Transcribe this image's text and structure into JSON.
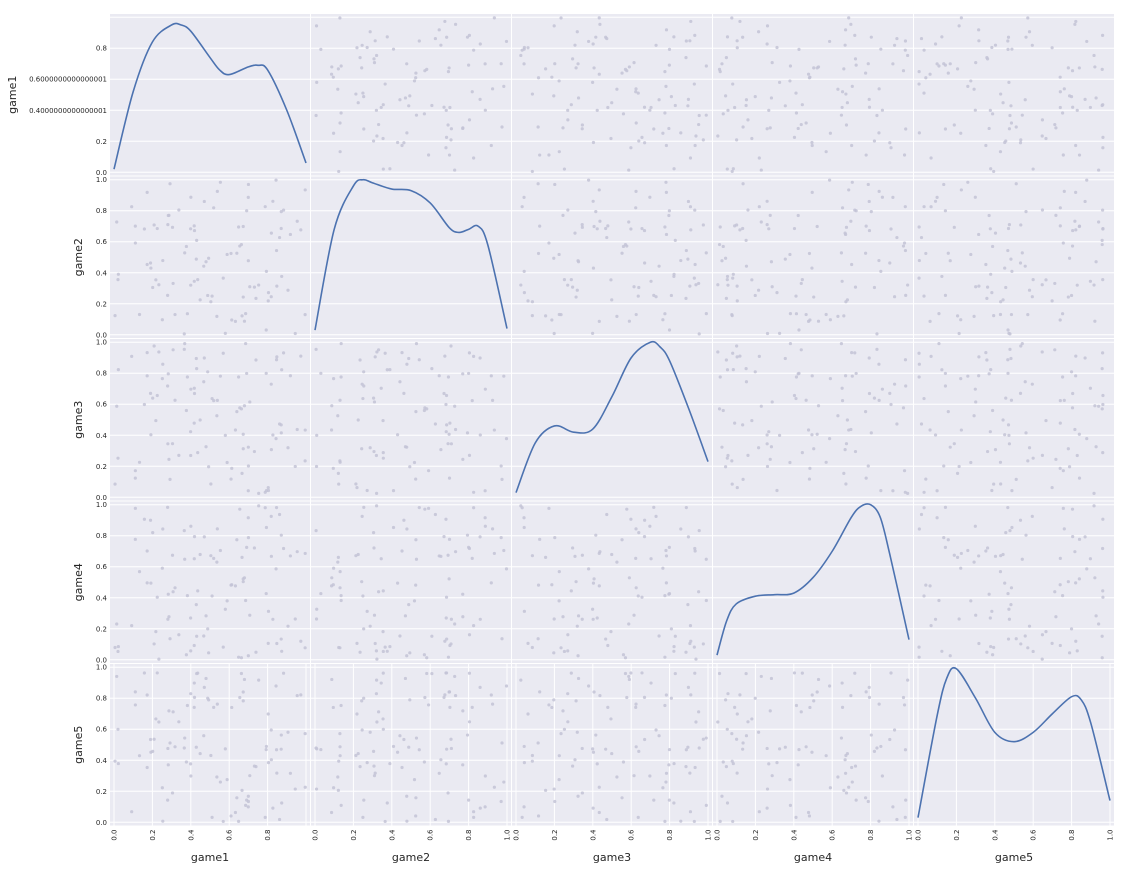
{
  "chart_data": {
    "type": "scatter",
    "subtype": "scatter_matrix",
    "variables": [
      "game1",
      "game2",
      "game3",
      "game4",
      "game5"
    ],
    "diagonal": "kde",
    "range": [
      0,
      1
    ],
    "style": {
      "background": "#eaeaf2",
      "grid": true,
      "grid_color": "#ffffff",
      "point_color": "#c3c3d6",
      "kde_color": "#4c72b0"
    },
    "ticks": {
      "y_default": [
        "0.0",
        "0.2",
        "0.4",
        "0.6",
        "0.8",
        "1.0"
      ],
      "y_game1": [
        "0.0",
        "0.2",
        "0.4000000000000001",
        "0.6000000000000001",
        "0.8"
      ],
      "x_first": [
        "0.0",
        "0.2",
        "0.4",
        "0.6",
        "0.8"
      ],
      "x_default": [
        "0.0",
        "0.2",
        "0.4",
        "0.6",
        "0.8",
        "1.0"
      ]
    },
    "kde": {
      "game1": {
        "x": [
          0.0,
          0.1,
          0.2,
          0.3,
          0.35,
          0.4,
          0.5,
          0.55,
          0.6,
          0.7,
          0.75,
          0.8,
          0.9,
          1.0
        ],
        "y": [
          0.02,
          0.52,
          0.84,
          0.95,
          0.95,
          0.91,
          0.74,
          0.66,
          0.63,
          0.68,
          0.69,
          0.66,
          0.4,
          0.06
        ]
      },
      "game2": {
        "x": [
          0.0,
          0.1,
          0.2,
          0.25,
          0.3,
          0.4,
          0.5,
          0.6,
          0.7,
          0.75,
          0.8,
          0.85,
          0.9,
          1.0
        ],
        "y": [
          0.03,
          0.68,
          0.96,
          1.0,
          0.98,
          0.94,
          0.93,
          0.85,
          0.69,
          0.66,
          0.68,
          0.7,
          0.58,
          0.04
        ]
      },
      "game3": {
        "x": [
          0.0,
          0.1,
          0.2,
          0.3,
          0.4,
          0.5,
          0.6,
          0.7,
          0.75,
          0.8,
          0.9,
          1.0
        ],
        "y": [
          0.03,
          0.35,
          0.46,
          0.42,
          0.44,
          0.65,
          0.9,
          1.0,
          0.97,
          0.88,
          0.57,
          0.23
        ]
      },
      "game4": {
        "x": [
          0.0,
          0.05,
          0.1,
          0.2,
          0.3,
          0.4,
          0.5,
          0.6,
          0.7,
          0.75,
          0.8,
          0.85,
          0.9,
          1.0
        ],
        "y": [
          0.03,
          0.25,
          0.36,
          0.41,
          0.42,
          0.43,
          0.53,
          0.7,
          0.92,
          0.99,
          1.0,
          0.92,
          0.68,
          0.13
        ]
      },
      "game5": {
        "x": [
          0.0,
          0.1,
          0.15,
          0.2,
          0.3,
          0.4,
          0.5,
          0.6,
          0.7,
          0.8,
          0.85,
          0.9,
          1.0
        ],
        "y": [
          0.03,
          0.69,
          0.93,
          0.99,
          0.8,
          0.58,
          0.52,
          0.58,
          0.7,
          0.81,
          0.79,
          0.64,
          0.14
        ]
      }
    }
  }
}
